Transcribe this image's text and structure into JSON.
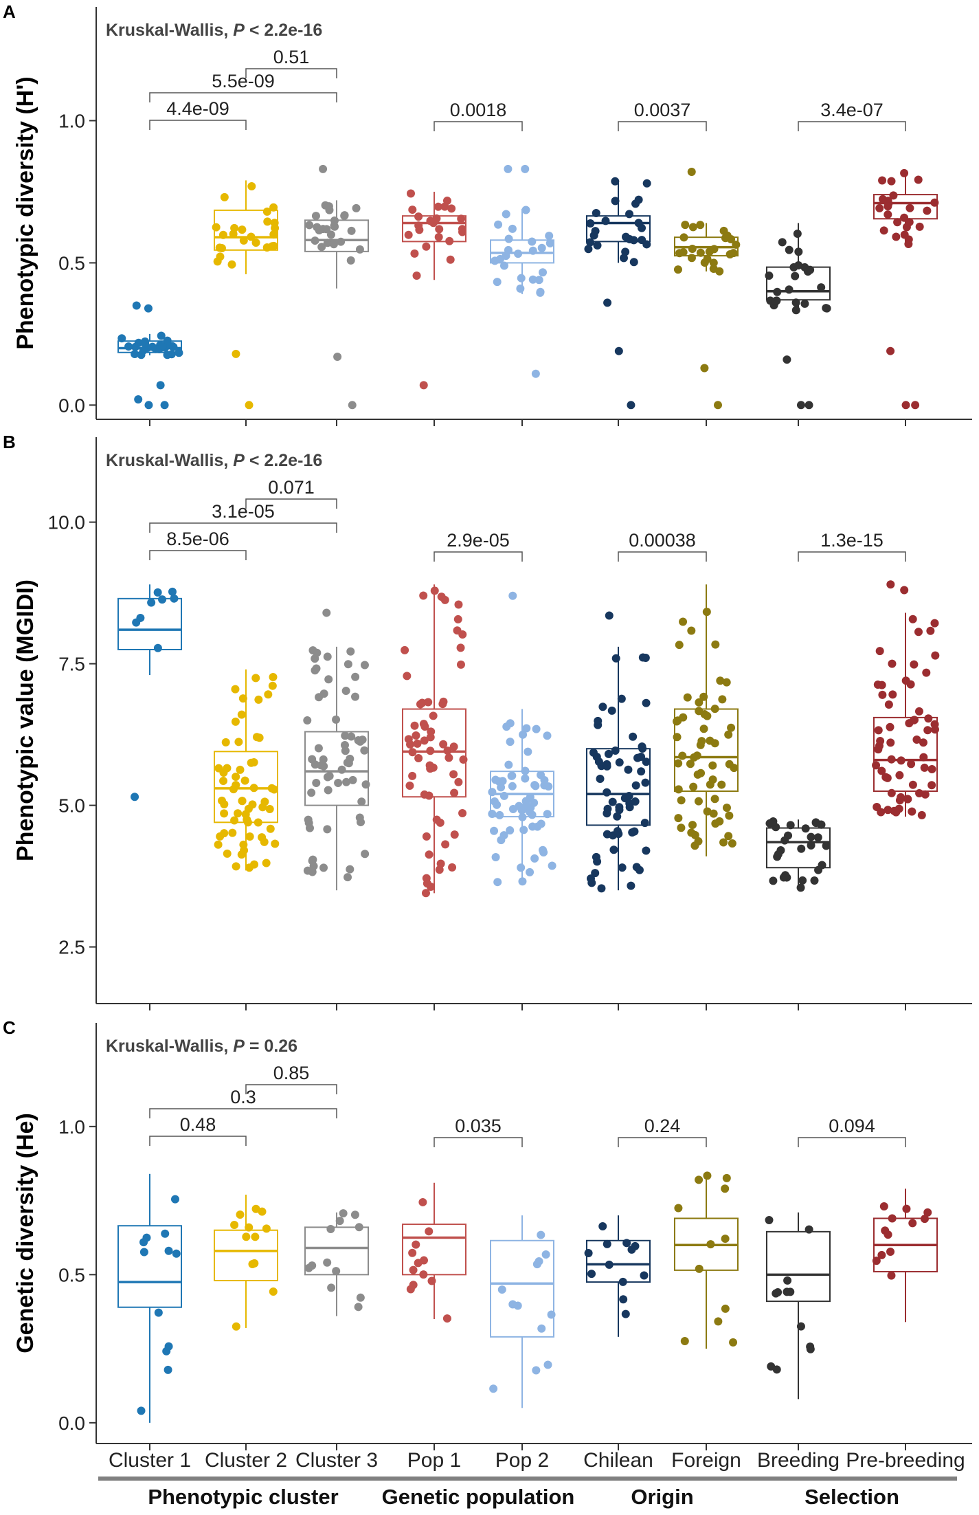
{
  "chart_data": [
    {
      "type": "box",
      "panel_label": "A",
      "test_prefix": "Kruskal-Wallis, ",
      "test_p_symbol": "P",
      "test_p_value": " < 2.2e-16",
      "ylabel": "Phenotypic diversity (H')",
      "ylim": [
        -0.05,
        1.4
      ],
      "yticks": [
        0.0,
        0.5,
        1.0
      ],
      "ytick_labels": [
        "0.0",
        "0.5",
        "1.0"
      ],
      "categories": [
        "Cluster 1",
        "Cluster 2",
        "Cluster 3",
        "Pop 1",
        "Pop 2",
        "Chilean",
        "Foreign",
        "Breeding",
        "Pre-breeding"
      ],
      "colors": [
        "#1f77b4",
        "#e6b800",
        "#8c8c8c",
        "#c0504d",
        "#8eb4e3",
        "#17375e",
        "#8c7a11",
        "#333333",
        "#9b2d30"
      ],
      "boxes": [
        {
          "q1": 0.185,
          "median": 0.2,
          "q3": 0.225,
          "whislo": 0.175,
          "whishi": 0.25
        },
        {
          "q1": 0.545,
          "median": 0.59,
          "q3": 0.685,
          "whislo": 0.46,
          "whishi": 0.79
        },
        {
          "q1": 0.54,
          "median": 0.58,
          "q3": 0.65,
          "whislo": 0.41,
          "whishi": 0.72
        },
        {
          "q1": 0.575,
          "median": 0.64,
          "q3": 0.665,
          "whislo": 0.44,
          "whishi": 0.75
        },
        {
          "q1": 0.5,
          "median": 0.535,
          "q3": 0.58,
          "whislo": 0.39,
          "whishi": 0.69
        },
        {
          "q1": 0.575,
          "median": 0.64,
          "q3": 0.665,
          "whislo": 0.5,
          "whishi": 0.79
        },
        {
          "q1": 0.525,
          "median": 0.555,
          "q3": 0.59,
          "whislo": 0.47,
          "whishi": 0.64
        },
        {
          "q1": 0.37,
          "median": 0.4,
          "q3": 0.485,
          "whislo": 0.33,
          "whishi": 0.64
        },
        {
          "q1": 0.655,
          "median": 0.71,
          "q3": 0.74,
          "whislo": 0.56,
          "whishi": 0.82
        }
      ],
      "outliers": [
        [
          0.35,
          0.34,
          0.07,
          0.02,
          0.0,
          0.0
        ],
        [
          0.18,
          0.0
        ],
        [
          0.83,
          0.17,
          0.0
        ],
        [
          0.07
        ],
        [
          0.83,
          0.83,
          0.11
        ],
        [
          0.36,
          0.19,
          0.0
        ],
        [
          0.82,
          0.13,
          0.0
        ],
        [
          0.16,
          0.0,
          0.0
        ],
        [
          0.19,
          0.0,
          0.0
        ]
      ],
      "comparisons": [
        {
          "groups": [
            "Cluster 2",
            "Cluster 3"
          ],
          "label": "0.51"
        },
        {
          "groups": [
            "Cluster 1",
            "Cluster 3"
          ],
          "label": "5.5e-09"
        },
        {
          "groups": [
            "Cluster 1",
            "Cluster 2"
          ],
          "label": "4.4e-09"
        },
        {
          "groups": [
            "Pop 1",
            "Pop 2"
          ],
          "label": "0.0018"
        },
        {
          "groups": [
            "Chilean",
            "Foreign"
          ],
          "label": "0.0037"
        },
        {
          "groups": [
            "Breeding",
            "Pre-breeding"
          ],
          "label": "3.4e-07"
        }
      ]
    },
    {
      "type": "box",
      "panel_label": "B",
      "test_prefix": "Kruskal-Wallis, ",
      "test_p_symbol": "P",
      "test_p_value": " < 2.2e-16",
      "ylabel": "Phenotypic value (MGIDI)",
      "ylim": [
        1.5,
        11.5
      ],
      "yticks": [
        2.5,
        5.0,
        7.5,
        10.0
      ],
      "ytick_labels": [
        "2.5",
        "5.0",
        "7.5",
        "10.0"
      ],
      "categories": [
        "Cluster 1",
        "Cluster 2",
        "Cluster 3",
        "Pop 1",
        "Pop 2",
        "Chilean",
        "Foreign",
        "Breeding",
        "Pre-breeding"
      ],
      "colors": [
        "#1f77b4",
        "#e6b800",
        "#8c8c8c",
        "#c0504d",
        "#8eb4e3",
        "#17375e",
        "#8c7a11",
        "#333333",
        "#9b2d30"
      ],
      "boxes": [
        {
          "q1": 7.75,
          "median": 8.1,
          "q3": 8.65,
          "whislo": 7.3,
          "whishi": 8.9
        },
        {
          "q1": 4.7,
          "median": 5.3,
          "q3": 5.95,
          "whislo": 3.85,
          "whishi": 7.4
        },
        {
          "q1": 5.0,
          "median": 5.6,
          "q3": 6.3,
          "whislo": 3.5,
          "whishi": 7.8
        },
        {
          "q1": 5.15,
          "median": 5.95,
          "q3": 6.7,
          "whislo": 3.45,
          "whishi": 8.9
        },
        {
          "q1": 4.8,
          "median": 5.2,
          "q3": 5.6,
          "whislo": 3.6,
          "whishi": 6.7
        },
        {
          "q1": 4.65,
          "median": 5.2,
          "q3": 6.0,
          "whislo": 3.5,
          "whishi": 7.8
        },
        {
          "q1": 5.25,
          "median": 5.85,
          "q3": 6.7,
          "whislo": 4.1,
          "whishi": 8.9
        },
        {
          "q1": 3.9,
          "median": 4.35,
          "q3": 4.6,
          "whislo": 3.5,
          "whishi": 4.75
        },
        {
          "q1": 5.25,
          "median": 5.8,
          "q3": 6.55,
          "whislo": 4.8,
          "whishi": 8.4
        }
      ],
      "outliers": [
        [
          5.15
        ],
        [],
        [
          8.4
        ],
        [],
        [
          8.7
        ],
        [
          8.35
        ],
        [],
        [],
        [
          8.9,
          8.8
        ]
      ],
      "comparisons": [
        {
          "groups": [
            "Cluster 2",
            "Cluster 3"
          ],
          "label": "0.071"
        },
        {
          "groups": [
            "Cluster 1",
            "Cluster 3"
          ],
          "label": "3.1e-05"
        },
        {
          "groups": [
            "Cluster 1",
            "Cluster 2"
          ],
          "label": "8.5e-06"
        },
        {
          "groups": [
            "Pop 1",
            "Pop 2"
          ],
          "label": "2.9e-05"
        },
        {
          "groups": [
            "Chilean",
            "Foreign"
          ],
          "label": "0.00038"
        },
        {
          "groups": [
            "Breeding",
            "Pre-breeding"
          ],
          "label": "1.3e-15"
        }
      ]
    },
    {
      "type": "box",
      "panel_label": "C",
      "test_prefix": "Kruskal-Wallis, ",
      "test_p_symbol": "P",
      "test_p_value": " = 0.26",
      "ylabel": "Genetic diversity (He)",
      "ylim": [
        -0.07,
        1.35
      ],
      "yticks": [
        0.0,
        0.5,
        1.0
      ],
      "ytick_labels": [
        "0.0",
        "0.5",
        "1.0"
      ],
      "categories": [
        "Cluster 1",
        "Cluster 2",
        "Cluster 3",
        "Pop 1",
        "Pop 2",
        "Chilean",
        "Foreign",
        "Breeding",
        "Pre-breeding"
      ],
      "colors": [
        "#1f77b4",
        "#e6b800",
        "#8c8c8c",
        "#c0504d",
        "#8eb4e3",
        "#17375e",
        "#8c7a11",
        "#333333",
        "#9b2d30"
      ],
      "boxes": [
        {
          "q1": 0.39,
          "median": 0.475,
          "q3": 0.665,
          "whislo": 0.0,
          "whishi": 0.84
        },
        {
          "q1": 0.48,
          "median": 0.58,
          "q3": 0.65,
          "whislo": 0.32,
          "whishi": 0.77
        },
        {
          "q1": 0.5,
          "median": 0.59,
          "q3": 0.66,
          "whislo": 0.36,
          "whishi": 0.71
        },
        {
          "q1": 0.5,
          "median": 0.625,
          "q3": 0.67,
          "whislo": 0.35,
          "whishi": 0.81
        },
        {
          "q1": 0.29,
          "median": 0.47,
          "q3": 0.615,
          "whislo": 0.05,
          "whishi": 0.7
        },
        {
          "q1": 0.475,
          "median": 0.535,
          "q3": 0.615,
          "whislo": 0.29,
          "whishi": 0.7
        },
        {
          "q1": 0.515,
          "median": 0.6,
          "q3": 0.69,
          "whislo": 0.25,
          "whishi": 0.84
        },
        {
          "q1": 0.41,
          "median": 0.5,
          "q3": 0.645,
          "whislo": 0.08,
          "whishi": 0.71
        },
        {
          "q1": 0.51,
          "median": 0.6,
          "q3": 0.69,
          "whislo": 0.34,
          "whishi": 0.79
        }
      ],
      "outliers": [
        [],
        [],
        [],
        [],
        [],
        [],
        [],
        [],
        []
      ],
      "comparisons": [
        {
          "groups": [
            "Cluster 2",
            "Cluster 3"
          ],
          "label": "0.85"
        },
        {
          "groups": [
            "Cluster 1",
            "Cluster 3"
          ],
          "label": "0.3"
        },
        {
          "groups": [
            "Cluster 1",
            "Cluster 2"
          ],
          "label": "0.48"
        },
        {
          "groups": [
            "Pop 1",
            "Pop 2"
          ],
          "label": "0.035"
        },
        {
          "groups": [
            "Chilean",
            "Foreign"
          ],
          "label": "0.24"
        },
        {
          "groups": [
            "Breeding",
            "Pre-breeding"
          ],
          "label": "0.094"
        }
      ]
    }
  ],
  "x_axis": {
    "tick_labels": [
      "Cluster 1",
      "Cluster 2",
      "Cluster 3",
      "Pop 1",
      "Pop 2",
      "Chilean",
      "Foreign",
      "Breeding",
      "Pre-breeding"
    ],
    "group_labels": [
      "Phenotypic cluster",
      "Genetic population",
      "Origin",
      "Selection"
    ],
    "group_members": [
      [
        "Cluster 1",
        "Cluster 2",
        "Cluster 3"
      ],
      [
        "Pop 1",
        "Pop 2"
      ],
      [
        "Chilean",
        "Foreign"
      ],
      [
        "Breeding",
        "Pre-breeding"
      ]
    ],
    "group_bar_color": "#808080"
  }
}
